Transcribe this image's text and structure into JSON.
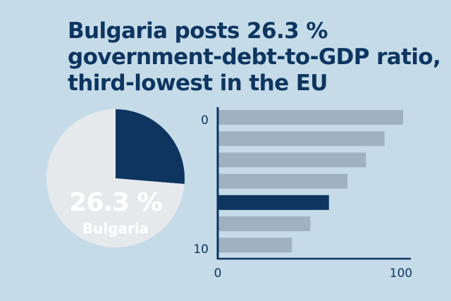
{
  "title_lines": [
    "Bulgaria posts 26.3 %",
    "government-debt-to-GDP ratio,",
    "third-lowest in the EU"
  ],
  "colors": {
    "background": "#c5dbe8",
    "navy": "#0d3560",
    "bar_grey": "#9fb2c2",
    "pie_light": "#e6e9ec"
  },
  "chart_data": [
    {
      "type": "pie",
      "slices": [
        {
          "label": "Bulgaria",
          "value": 26.3,
          "color": "#0d3560"
        },
        {
          "label": "",
          "value": 73.7,
          "color": "#e6e9ec"
        }
      ],
      "annotation_value": "26.3 %",
      "annotation_label": "Bulgaria"
    },
    {
      "type": "bar",
      "orientation": "horizontal",
      "values": [
        100,
        90,
        80,
        70,
        60,
        50,
        40
      ],
      "highlight_index": 4,
      "xlim": [
        0,
        100
      ],
      "x_ticks": [
        "0",
        "100"
      ],
      "y_ticks": [
        "0",
        "10"
      ]
    }
  ]
}
